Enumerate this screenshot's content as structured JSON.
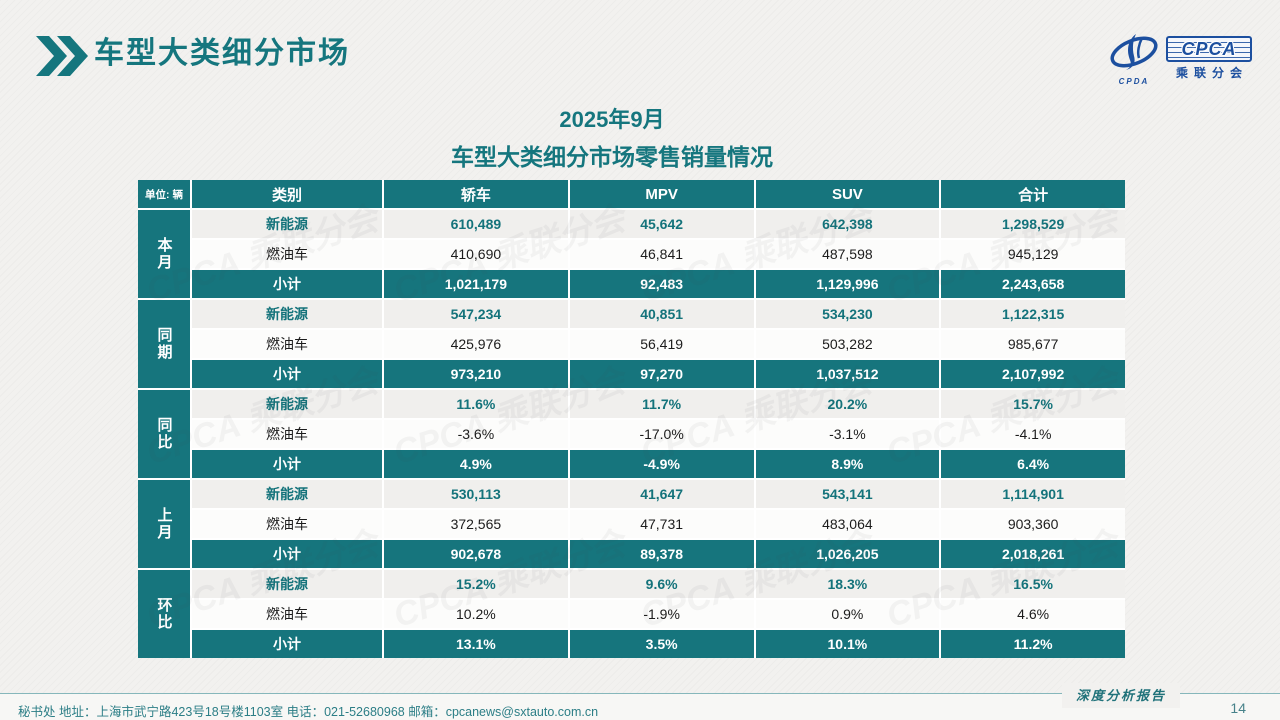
{
  "page": {
    "title": "车型大类细分市场",
    "subtitle_line1": "2025年9月",
    "subtitle_line2": "车型大类细分市场零售销量情况"
  },
  "logo": {
    "cpca": "CPCA",
    "sub": "乘联分会",
    "swoosh_label": "CPDA"
  },
  "colors": {
    "teal": "#16757D",
    "teal_text": "#14737B",
    "logo_blue": "#1C4F9F"
  },
  "watermark": "CPCA 乘联分会",
  "table": {
    "unit_label": "单位: 辆",
    "columns": [
      "类别",
      "轿车",
      "MPV",
      "SUV",
      "合计"
    ],
    "groups": [
      {
        "label": "本月",
        "rows": [
          {
            "name": "新能源",
            "style": "nev",
            "values": [
              "610,489",
              "45,642",
              "642,398",
              "1,298,529"
            ]
          },
          {
            "name": "燃油车",
            "style": "ice",
            "values": [
              "410,690",
              "46,841",
              "487,598",
              "945,129"
            ]
          },
          {
            "name": "小计",
            "style": "sub",
            "values": [
              "1,021,179",
              "92,483",
              "1,129,996",
              "2,243,658"
            ]
          }
        ]
      },
      {
        "label": "同期",
        "rows": [
          {
            "name": "新能源",
            "style": "nev",
            "values": [
              "547,234",
              "40,851",
              "534,230",
              "1,122,315"
            ]
          },
          {
            "name": "燃油车",
            "style": "ice",
            "values": [
              "425,976",
              "56,419",
              "503,282",
              "985,677"
            ]
          },
          {
            "name": "小计",
            "style": "sub",
            "values": [
              "973,210",
              "97,270",
              "1,037,512",
              "2,107,992"
            ]
          }
        ]
      },
      {
        "label": "同比",
        "rows": [
          {
            "name": "新能源",
            "style": "nev",
            "values": [
              "11.6%",
              "11.7%",
              "20.2%",
              "15.7%"
            ]
          },
          {
            "name": "燃油车",
            "style": "ice",
            "values": [
              "-3.6%",
              "-17.0%",
              "-3.1%",
              "-4.1%"
            ]
          },
          {
            "name": "小计",
            "style": "sub",
            "values": [
              "4.9%",
              "-4.9%",
              "8.9%",
              "6.4%"
            ]
          }
        ]
      },
      {
        "label": "上月",
        "rows": [
          {
            "name": "新能源",
            "style": "nev",
            "values": [
              "530,113",
              "41,647",
              "543,141",
              "1,114,901"
            ]
          },
          {
            "name": "燃油车",
            "style": "ice",
            "values": [
              "372,565",
              "47,731",
              "483,064",
              "903,360"
            ]
          },
          {
            "name": "小计",
            "style": "sub",
            "values": [
              "902,678",
              "89,378",
              "1,026,205",
              "2,018,261"
            ]
          }
        ]
      },
      {
        "label": "环比",
        "rows": [
          {
            "name": "新能源",
            "style": "nev",
            "values": [
              "15.2%",
              "9.6%",
              "18.3%",
              "16.5%"
            ]
          },
          {
            "name": "燃油车",
            "style": "ice",
            "values": [
              "10.2%",
              "-1.9%",
              "0.9%",
              "4.6%"
            ]
          },
          {
            "name": "小计",
            "style": "sub",
            "values": [
              "13.1%",
              "3.5%",
              "10.1%",
              "11.2%"
            ]
          }
        ]
      }
    ]
  },
  "footer": {
    "info": "秘书处   地址：上海市武宁路423号18号楼1103室  电话：021-52680968   邮箱：cpcanews@sxtauto.com.cn",
    "report_type": "深度分析报告",
    "page_number": "14"
  }
}
